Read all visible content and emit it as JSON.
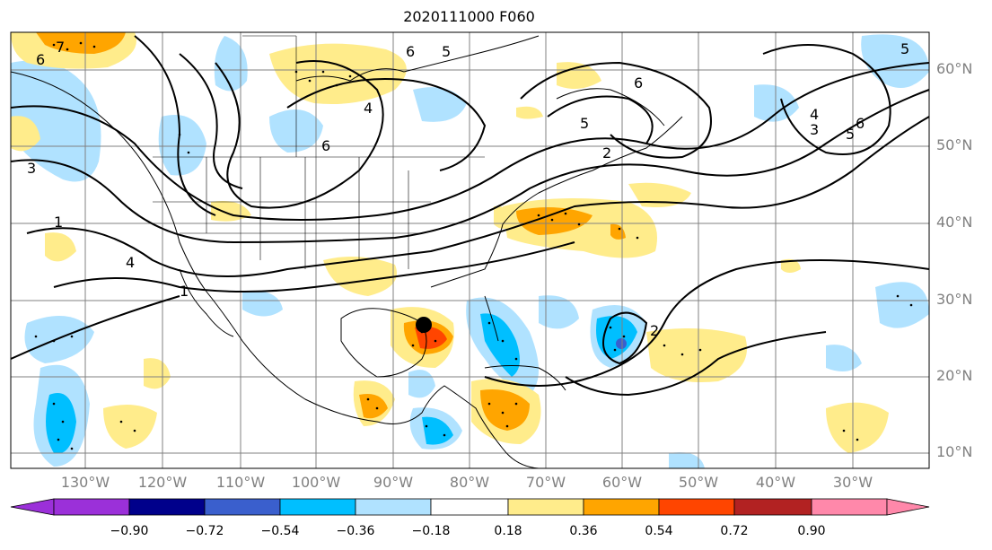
{
  "title": "2020111000 F060",
  "map": {
    "lat_labels": [
      "60°N",
      "50°N",
      "40°N",
      "30°N",
      "20°N",
      "10°N"
    ],
    "lon_labels": [
      "130°W",
      "120°W",
      "110°W",
      "100°W",
      "90°W",
      "80°W",
      "70°W",
      "60°W",
      "50°W",
      "40°W",
      "30°W"
    ],
    "contour_labels": [
      "6",
      "6",
      "5",
      "4",
      "6",
      "6",
      "5",
      "2",
      "4",
      "3",
      "5",
      "5",
      "6",
      "3",
      "1",
      "4",
      "1",
      "2",
      "7"
    ],
    "marker": "storm-center-dot",
    "colors": {
      "ocean": "#ffffff",
      "contour": "#000000",
      "grid": "#808080",
      "coast": "#000000"
    }
  },
  "colorbar": {
    "ticks": [
      "−0.90",
      "−0.72",
      "−0.54",
      "−0.36",
      "−0.18",
      "0.18",
      "0.36",
      "0.54",
      "0.72",
      "0.90"
    ],
    "colors": [
      "#9b30d9",
      "#00008b",
      "#3a5fcd",
      "#00bfff",
      "#b0e2ff",
      "#ffffff",
      "#ffec8b",
      "#ffa500",
      "#ff4500",
      "#b22222",
      "#ff88aa"
    ]
  }
}
